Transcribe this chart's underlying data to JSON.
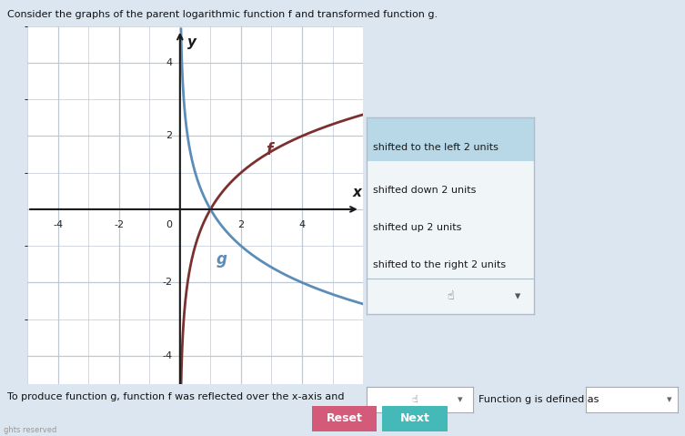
{
  "title": "Consider the graphs of the parent logarithmic function f and transformed function g.",
  "bg_color": "#dce6f0",
  "graph_bg": "#dce6f0",
  "graph_inner_bg": "#ffffff",
  "xlim": [
    -5,
    6
  ],
  "ylim": [
    -5,
    5
  ],
  "xticks": [
    -4,
    -2,
    0,
    2,
    4
  ],
  "yticks": [
    -4,
    -2,
    0,
    2,
    4
  ],
  "f_color": "#7B3030",
  "g_color": "#5B8DB8",
  "f_label": "f",
  "g_label": "g",
  "dropdown_options": [
    "shifted to the left 2 units",
    "shifted down 2 units",
    "shifted up 2 units",
    "shifted to the right 2 units"
  ],
  "bottom_text": "To produce function g, function f was reflected over the x-axis and",
  "function_g_label": "Function g is defined as",
  "reset_btn_color": "#d45a7a",
  "next_btn_color": "#45b8b8",
  "reset_btn_text": "Reset",
  "next_btn_text": "Next",
  "axis_color": "#1a1a1a",
  "grid_color": "#c0c8d4",
  "dropdown_border": "#b0bcc8",
  "dropdown_highlight": "#b8d8e8",
  "dropdown_bg": "#f0f5f8",
  "footer_text": "ghts reserved"
}
